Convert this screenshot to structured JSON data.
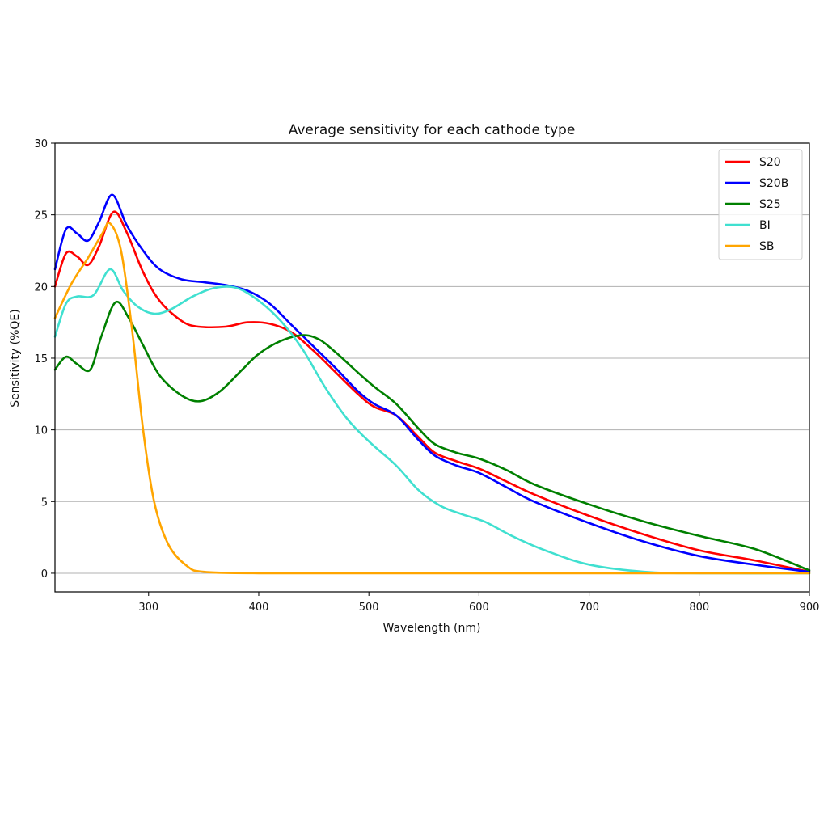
{
  "chart_data": {
    "type": "line",
    "title": "Average sensitivity for each cathode type",
    "xlabel": "Wavelength (nm)",
    "ylabel": "Sensitivity (%QE)",
    "xlim": [
      215,
      900
    ],
    "ylim": [
      -1.3,
      30
    ],
    "xticks": [
      300,
      400,
      500,
      600,
      700,
      800,
      900
    ],
    "yticks": [
      0,
      5,
      10,
      15,
      20,
      25,
      30
    ],
    "grid": "horizontal",
    "legend_position": "top-right",
    "series": [
      {
        "name": "S20",
        "color": "#ff0000",
        "points": [
          [
            215,
            20.0
          ],
          [
            225,
            22.3
          ],
          [
            235,
            22.1
          ],
          [
            245,
            21.5
          ],
          [
            255,
            22.8
          ],
          [
            268,
            25.2
          ],
          [
            280,
            23.8
          ],
          [
            295,
            21.0
          ],
          [
            310,
            19.0
          ],
          [
            330,
            17.6
          ],
          [
            345,
            17.2
          ],
          [
            370,
            17.2
          ],
          [
            390,
            17.5
          ],
          [
            410,
            17.4
          ],
          [
            430,
            16.8
          ],
          [
            450,
            15.5
          ],
          [
            470,
            14.0
          ],
          [
            490,
            12.5
          ],
          [
            505,
            11.6
          ],
          [
            525,
            11.0
          ],
          [
            545,
            9.5
          ],
          [
            560,
            8.4
          ],
          [
            580,
            7.8
          ],
          [
            600,
            7.3
          ],
          [
            625,
            6.4
          ],
          [
            650,
            5.5
          ],
          [
            700,
            4.0
          ],
          [
            750,
            2.7
          ],
          [
            800,
            1.6
          ],
          [
            850,
            0.9
          ],
          [
            900,
            0.1
          ]
        ]
      },
      {
        "name": "S20B",
        "color": "#0000ff",
        "points": [
          [
            215,
            21.2
          ],
          [
            225,
            24.0
          ],
          [
            235,
            23.7
          ],
          [
            245,
            23.2
          ],
          [
            255,
            24.5
          ],
          [
            267,
            26.4
          ],
          [
            280,
            24.3
          ],
          [
            295,
            22.5
          ],
          [
            310,
            21.2
          ],
          [
            330,
            20.5
          ],
          [
            350,
            20.3
          ],
          [
            370,
            20.1
          ],
          [
            390,
            19.7
          ],
          [
            410,
            18.8
          ],
          [
            430,
            17.3
          ],
          [
            450,
            15.8
          ],
          [
            470,
            14.3
          ],
          [
            490,
            12.7
          ],
          [
            505,
            11.8
          ],
          [
            525,
            11.0
          ],
          [
            545,
            9.3
          ],
          [
            560,
            8.2
          ],
          [
            580,
            7.5
          ],
          [
            600,
            7.0
          ],
          [
            625,
            6.0
          ],
          [
            650,
            5.0
          ],
          [
            700,
            3.5
          ],
          [
            750,
            2.2
          ],
          [
            800,
            1.2
          ],
          [
            850,
            0.6
          ],
          [
            900,
            0.1
          ]
        ]
      },
      {
        "name": "S25",
        "color": "#008000",
        "points": [
          [
            215,
            14.2
          ],
          [
            225,
            15.1
          ],
          [
            235,
            14.6
          ],
          [
            247,
            14.2
          ],
          [
            257,
            16.5
          ],
          [
            270,
            18.9
          ],
          [
            282,
            17.8
          ],
          [
            295,
            15.9
          ],
          [
            310,
            13.8
          ],
          [
            330,
            12.4
          ],
          [
            347,
            12.0
          ],
          [
            365,
            12.7
          ],
          [
            385,
            14.2
          ],
          [
            400,
            15.3
          ],
          [
            420,
            16.2
          ],
          [
            440,
            16.6
          ],
          [
            455,
            16.3
          ],
          [
            470,
            15.4
          ],
          [
            490,
            14.0
          ],
          [
            505,
            13.0
          ],
          [
            525,
            11.8
          ],
          [
            545,
            10.1
          ],
          [
            560,
            9.0
          ],
          [
            580,
            8.4
          ],
          [
            600,
            8.0
          ],
          [
            625,
            7.2
          ],
          [
            650,
            6.2
          ],
          [
            700,
            4.8
          ],
          [
            750,
            3.6
          ],
          [
            800,
            2.6
          ],
          [
            850,
            1.7
          ],
          [
            900,
            0.2
          ]
        ]
      },
      {
        "name": "BI",
        "color": "#40e0d0",
        "points": [
          [
            215,
            16.5
          ],
          [
            225,
            18.8
          ],
          [
            235,
            19.3
          ],
          [
            250,
            19.4
          ],
          [
            265,
            21.2
          ],
          [
            277,
            19.7
          ],
          [
            290,
            18.6
          ],
          [
            305,
            18.1
          ],
          [
            320,
            18.4
          ],
          [
            340,
            19.3
          ],
          [
            360,
            19.9
          ],
          [
            380,
            19.9
          ],
          [
            400,
            19.0
          ],
          [
            420,
            17.6
          ],
          [
            440,
            15.6
          ],
          [
            460,
            13.0
          ],
          [
            480,
            10.8
          ],
          [
            500,
            9.2
          ],
          [
            525,
            7.5
          ],
          [
            545,
            5.8
          ],
          [
            565,
            4.7
          ],
          [
            585,
            4.1
          ],
          [
            605,
            3.6
          ],
          [
            630,
            2.6
          ],
          [
            660,
            1.6
          ],
          [
            700,
            0.6
          ],
          [
            750,
            0.1
          ],
          [
            800,
            0.0
          ],
          [
            900,
            0.0
          ]
        ]
      },
      {
        "name": "SB",
        "color": "#ffa500",
        "points": [
          [
            215,
            17.8
          ],
          [
            230,
            20.2
          ],
          [
            245,
            22.0
          ],
          [
            258,
            23.7
          ],
          [
            265,
            24.4
          ],
          [
            275,
            22.5
          ],
          [
            285,
            17.0
          ],
          [
            295,
            10.0
          ],
          [
            305,
            5.0
          ],
          [
            318,
            2.0
          ],
          [
            335,
            0.5
          ],
          [
            350,
            0.1
          ],
          [
            400,
            0.0
          ],
          [
            500,
            0.0
          ],
          [
            600,
            0.0
          ],
          [
            700,
            0.0
          ],
          [
            800,
            0.0
          ],
          [
            900,
            0.0
          ]
        ]
      }
    ]
  }
}
